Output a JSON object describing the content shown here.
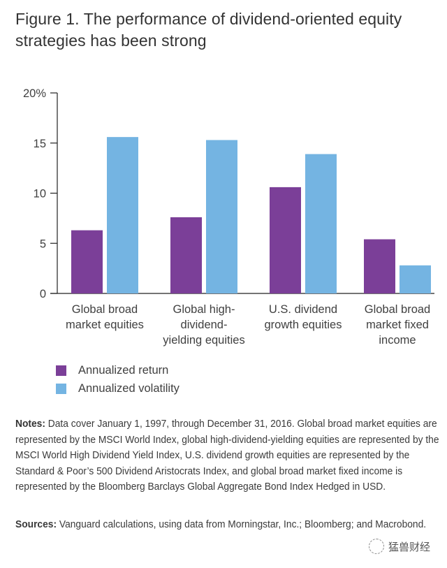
{
  "title": "Figure 1. The performance of dividend-oriented equity strategies has been strong",
  "chart_data": {
    "type": "bar",
    "title": "Figure 1. The performance of dividend-oriented equity strategies has been strong",
    "xlabel": "",
    "ylabel": "",
    "ylim": [
      0,
      20
    ],
    "yticks": [
      0,
      5,
      10,
      15,
      20
    ],
    "ytick_labels": [
      "0",
      "5",
      "10",
      "15",
      "20%"
    ],
    "grid": false,
    "legend_position": "bottom-left",
    "categories": [
      "Global broad market equities",
      "Global high-dividend-yielding equities",
      "U.S. dividend growth equities",
      "Global broad market fixed income"
    ],
    "category_label_lines": [
      [
        "Global broad",
        "market equities"
      ],
      [
        "Global high-",
        "dividend-",
        "yielding equities"
      ],
      [
        "U.S. dividend",
        "growth equities"
      ],
      [
        "Global broad",
        "market fixed",
        "income"
      ]
    ],
    "series": [
      {
        "name": "Annualized return",
        "color": "#7b3f98",
        "values": [
          6.3,
          7.6,
          10.6,
          5.4
        ]
      },
      {
        "name": "Annualized volatility",
        "color": "#74b4e2",
        "values": [
          15.6,
          15.3,
          13.9,
          2.8
        ]
      }
    ]
  },
  "notes": {
    "label": "Notes:",
    "text": " Data cover January 1, 1997, through December 31, 2016. Global broad market equities are represented by the MSCI World Index, global high-dividend-yielding equities are represented by the MSCI World High Dividend Yield Index, U.S. dividend growth equities are represented by the Standard & Poor’s 500 Dividend Aristocrats Index, and global broad market fixed income is represented by the Bloomberg Barclays Global Aggregate Bond Index Hedged in USD."
  },
  "sources": {
    "label": "Sources:",
    "text": " Vanguard calculations, using data from Morningstar, Inc.; Bloomberg; and Macrobond."
  },
  "watermark": "猛兽财经"
}
